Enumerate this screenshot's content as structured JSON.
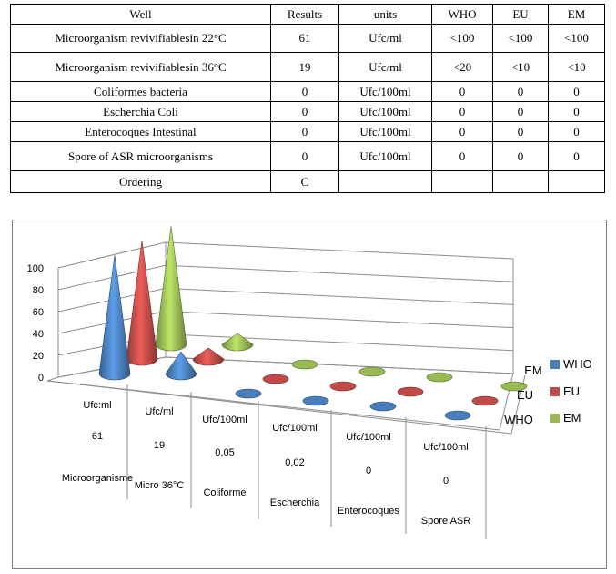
{
  "table": {
    "headers": [
      "Well",
      "Results",
      "units",
      "WHO",
      "EU",
      "EM"
    ],
    "rows": [
      [
        "Microorganism revivifiablesin 22°C",
        "61",
        "Ufc/ml",
        "<100",
        "<100",
        "<100"
      ],
      [
        "Microorganism revivifiablesin 36°C",
        "19",
        "Ufc/ml",
        "<20",
        "<10",
        "<10"
      ],
      [
        "Coliformes bacteria",
        "0",
        "Ufc/100ml",
        "0",
        "0",
        "0"
      ],
      [
        "Escherchia Coli",
        "0",
        "Ufc/100ml",
        "0",
        "0",
        "0"
      ],
      [
        "Enterocoques Intestinal",
        "0",
        "Ufc/100ml",
        "0",
        "0",
        "0"
      ],
      [
        "Spore of ASR microorganisms",
        "0",
        "Ufc/100ml",
        "0",
        "0",
        "0"
      ],
      [
        "Ordering",
        "C",
        "",
        "",
        "",
        ""
      ]
    ]
  },
  "chart_data": {
    "type": "bar",
    "shape": "cone-3d",
    "categories": [
      {
        "unit": "Ufc:ml",
        "result": "61",
        "name": "Microorganisme"
      },
      {
        "unit": "Ufc/ml",
        "result": "19",
        "name": "Micro 36°C"
      },
      {
        "unit": "Ufc/100ml",
        "result": "0,05",
        "name": "Coliforme"
      },
      {
        "unit": "Ufc/100ml",
        "result": "0,02",
        "name": "Escherchia"
      },
      {
        "unit": "Ufc/100ml",
        "result": "0",
        "name": "Enterocoques"
      },
      {
        "unit": "Ufc/100ml",
        "result": "0",
        "name": "Spore ASR"
      }
    ],
    "series": [
      {
        "name": "WHO",
        "color": "#4a7ebb",
        "values": [
          100,
          20,
          0,
          0,
          0,
          0
        ]
      },
      {
        "name": "EU",
        "color": "#be4b48",
        "values": [
          100,
          10,
          0,
          0,
          0,
          0
        ]
      },
      {
        "name": "EM",
        "color": "#98b954",
        "values": [
          100,
          10,
          0,
          0,
          0,
          0
        ]
      }
    ],
    "depth_labels": [
      "EM",
      "EU",
      "WHO"
    ],
    "yticks": [
      0,
      20,
      40,
      60,
      80,
      100
    ],
    "ylim": [
      0,
      100
    ],
    "legend": "right",
    "grid": true
  }
}
